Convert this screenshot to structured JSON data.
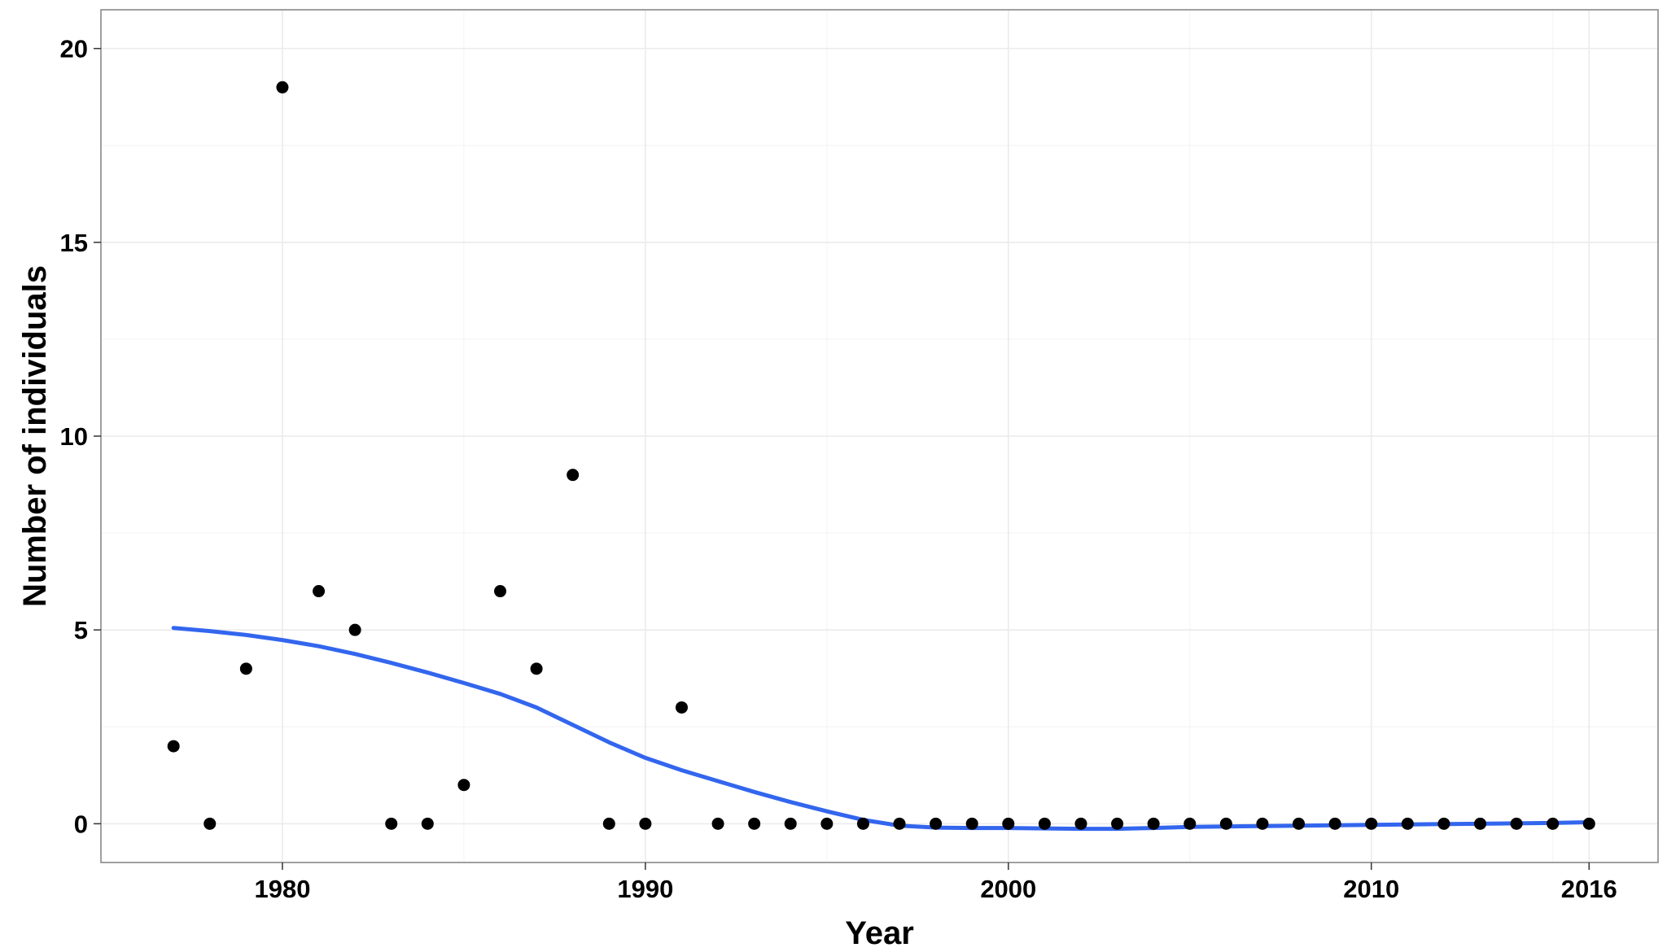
{
  "chart_data": {
    "type": "scatter",
    "xlabel": "Year",
    "ylabel": "Number of individuals",
    "xlim": [
      1975.0,
      2017.9
    ],
    "ylim": [
      -1.0,
      21.0
    ],
    "x_ticks": [
      1980,
      1990,
      2000,
      2010,
      2016
    ],
    "y_ticks": [
      0,
      5,
      10,
      15,
      20
    ],
    "grid": true,
    "points": {
      "x": [
        1977,
        1978,
        1979,
        1980,
        1981,
        1982,
        1983,
        1984,
        1985,
        1986,
        1987,
        1988,
        1989,
        1990,
        1991,
        1992,
        1993,
        1994,
        1995,
        1996,
        1997,
        1998,
        1999,
        2000,
        2001,
        2002,
        2003,
        2004,
        2005,
        2006,
        2007,
        2008,
        2009,
        2010,
        2011,
        2012,
        2013,
        2014,
        2015,
        2016
      ],
      "y": [
        2,
        0,
        4,
        19,
        6,
        5,
        0,
        0,
        1,
        6,
        4,
        9,
        0,
        0,
        3,
        0,
        0,
        0,
        0,
        0,
        0,
        0,
        0,
        0,
        0,
        0,
        0,
        0,
        0,
        0,
        0,
        0,
        0,
        0,
        0,
        0,
        0,
        0,
        0,
        0
      ],
      "color": "#000000"
    },
    "smooth_line": {
      "x": [
        1977,
        1978,
        1979,
        1980,
        1981,
        1982,
        1983,
        1984,
        1985,
        1986,
        1987,
        1988,
        1989,
        1990,
        1991,
        1992,
        1993,
        1994,
        1995,
        1996,
        1997,
        1998,
        1999,
        2000,
        2001,
        2002,
        2003,
        2004,
        2005,
        2006,
        2007,
        2008,
        2009,
        2010,
        2011,
        2012,
        2013,
        2014,
        2015,
        2016
      ],
      "y": [
        5.05,
        4.97,
        4.87,
        4.74,
        4.58,
        4.38,
        4.15,
        3.9,
        3.63,
        3.35,
        3.0,
        2.55,
        2.1,
        1.7,
        1.38,
        1.1,
        0.82,
        0.56,
        0.32,
        0.1,
        -0.05,
        -0.1,
        -0.11,
        -0.11,
        -0.12,
        -0.13,
        -0.13,
        -0.11,
        -0.08,
        -0.07,
        -0.06,
        -0.05,
        -0.04,
        -0.03,
        -0.02,
        -0.01,
        0.0,
        0.01,
        0.02,
        0.04
      ],
      "color": "#3366ee"
    },
    "colors": {
      "panel_border": "#808080",
      "grid_major": "#ebebeb",
      "grid_minor": "#f5f5f5"
    }
  }
}
